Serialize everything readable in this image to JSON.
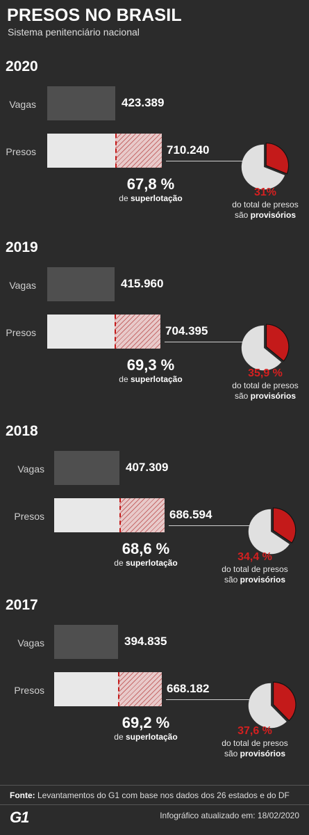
{
  "header": {
    "title": "PRESOS NO BRASIL",
    "subtitle": "Sistema penitenciário nacional"
  },
  "labels": {
    "vagas": "Vagas",
    "presos": "Presos",
    "superlot_prefix": "de ",
    "superlot_bold": "superlotação",
    "prov_line1": "do total de presos",
    "prov_line2_prefix": "são ",
    "prov_line2_bold": "provisórios"
  },
  "chart_data": {
    "type": "bar",
    "categories": [
      "2020",
      "2019",
      "2018",
      "2017"
    ],
    "series": [
      {
        "name": "Vagas",
        "values": [
          423389,
          415960,
          407309,
          394835
        ],
        "display": [
          "423.389",
          "415.960",
          "407.309",
          "394.835"
        ]
      },
      {
        "name": "Presos",
        "values": [
          710240,
          704395,
          686594,
          668182
        ],
        "display": [
          "710.240",
          "704.395",
          "686.594",
          "668.182"
        ]
      }
    ],
    "superlotacao_pct": [
      "67,8 %",
      "69,3 %",
      "68,6 %",
      "69,2 %"
    ],
    "provisorios_pct_display": [
      "31%",
      "35,9 %",
      "34,4 %",
      "37,6 %"
    ],
    "provisorios_fraction": [
      0.31,
      0.359,
      0.344,
      0.376
    ],
    "colors": {
      "vagas": "#4f4f4f",
      "presos": "#e8e8e8",
      "excess": "#c41a1a",
      "pie": "#e0e0e0",
      "provisorios": "#c41a1a"
    }
  },
  "footer": {
    "fonte_label": "Fonte:",
    "fonte_text": " Levantamentos do G1 com base nos dados dos 26 estados e do DF",
    "logo": "G1",
    "updated": "Infográfico atualizado em: 18/02/2020"
  }
}
